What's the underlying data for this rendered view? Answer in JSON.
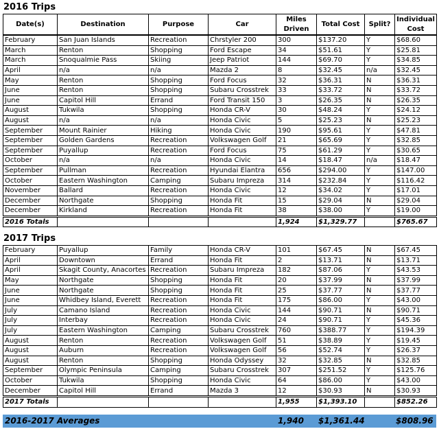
{
  "headers": [
    "Date(s)",
    "Destination",
    "Purpose",
    "Car",
    "Miles Driven",
    "Total Cost",
    "Split?",
    "Individual Cost"
  ],
  "trips_2016": {
    "title": "2016 Trips",
    "rows": [
      [
        "February",
        "San Juan Islands",
        "Recreation",
        "Chrstyler 200",
        "300",
        "$137.20",
        "Y",
        "$68.60"
      ],
      [
        "March",
        "Renton",
        "Shopping",
        "Ford Escape",
        "34",
        "$51.61",
        "Y",
        "$25.81"
      ],
      [
        "March",
        "Snoqualmie Pass",
        "Skiing",
        "Jeep Patriot",
        "144",
        "$69.70",
        "Y",
        "$34.85"
      ],
      [
        "April",
        "n/a",
        "n/a",
        "Mazda 2",
        "8",
        "$32.45",
        "n/a",
        "$32.45"
      ],
      [
        "May",
        "Renton",
        "Shopping",
        "Ford Focus",
        "32",
        "$36.31",
        "N",
        "$36.31"
      ],
      [
        "June",
        "Renton",
        "Shopping",
        "Subaru Crosstrek",
        "33",
        "$33.72",
        "N",
        "$33.72"
      ],
      [
        "June",
        "Capitol Hill",
        "Errand",
        "Ford Transit 150",
        "3",
        "$26.35",
        "N",
        "$26.35"
      ],
      [
        "August",
        "Tukwila",
        "Shopping",
        "Honda CR-V",
        "30",
        "$48.24",
        "Y",
        "$24.12"
      ],
      [
        "August",
        "n/a",
        "n/a",
        "Honda Civic",
        "5",
        "$25.23",
        "N",
        "$25.23"
      ],
      [
        "September",
        "Mount Rainier",
        "Hiking",
        "Honda Civic",
        "190",
        "$95.61",
        "Y",
        "$47.81"
      ],
      [
        "September",
        "Golden Gardens",
        "Recreation",
        "Volkswagen Golf",
        "21",
        "$65.69",
        "Y",
        "$32.85"
      ],
      [
        "September",
        "Puyallup",
        "Recreation",
        "Ford Focus",
        "75",
        "$61.29",
        "Y",
        "$30.65"
      ],
      [
        "October",
        "n/a",
        "n/a",
        "Honda Civic",
        "14",
        "$18.47",
        "n/a",
        "$18.47"
      ],
      [
        "September",
        "Pullman",
        "Recreation",
        "Hyundai Elantra",
        "656",
        "$294.00",
        "Y",
        "$147.00"
      ],
      [
        "October",
        "Eastern Washington",
        "Camping",
        "Subaru Impreza",
        "314",
        "$232.84",
        "Y",
        "$116.42"
      ],
      [
        "November",
        "Ballard",
        "Recreation",
        "Honda Civic",
        "12",
        "$34.02",
        "Y",
        "$17.01"
      ],
      [
        "December",
        "Northgate",
        "Shopping",
        "Honda Fit",
        "15",
        "$29.04",
        "N",
        "$29.04"
      ],
      [
        "December",
        "Kirkland",
        "Recreation",
        "Honda Fit",
        "38",
        "$38.00",
        "Y",
        "$19.00"
      ]
    ],
    "totals": [
      "2016 Totals",
      "",
      "",
      "",
      "1,924",
      "$1,329.77",
      "",
      "$765.67"
    ]
  },
  "trips_2017": {
    "title": "2017 Trips",
    "rows": [
      [
        "February",
        "Puyallup",
        "Family",
        "Honda CR-V",
        "101",
        "$67.45",
        "N",
        "$67.45"
      ],
      [
        "April",
        "Downtown",
        "Errand",
        "Honda Fit",
        "2",
        "$13.71",
        "N",
        "$13.71"
      ],
      [
        "April",
        "Skagit County, Anacortes",
        "Recreation",
        "Subaru Impreza",
        "182",
        "$87.06",
        "Y",
        "$43.53"
      ],
      [
        "May",
        "Northgate",
        "Shopping",
        "Honda Fit",
        "20",
        "$37.99",
        "N",
        "$37.99"
      ],
      [
        "June",
        "Northgate",
        "Shopping",
        "Honda Fit",
        "25",
        "$37.77",
        "N",
        "$37.77"
      ],
      [
        "June",
        "Whidbey Island, Everett",
        "Recreation",
        "Honda Fit",
        "175",
        "$86.00",
        "Y",
        "$43.00"
      ],
      [
        "July",
        "Camano Island",
        "Recreation",
        "Honda Civic",
        "144",
        "$90.71",
        "N",
        "$90.71"
      ],
      [
        "July",
        "Interbay",
        "Recreation",
        "Honda Civic",
        "24",
        "$90.71",
        "Y",
        "$45.36"
      ],
      [
        "July",
        "Eastern Washington",
        "Camping",
        "Subaru Crosstrek",
        "760",
        "$388.77",
        "Y",
        "$194.39"
      ],
      [
        "August",
        "Renton",
        "Recreation",
        "Volkswagen Golf",
        "51",
        "$38.89",
        "Y",
        "$19.45"
      ],
      [
        "August",
        "Auburn",
        "Recreation",
        "Volkswagen Golf",
        "56",
        "$52.74",
        "Y",
        "$26.37"
      ],
      [
        "August",
        "Renton",
        "Shopping",
        "Honda Odyssey",
        "32",
        "$32.85",
        "N",
        "$32.85"
      ],
      [
        "September",
        "Olympic Peninsula",
        "Camping",
        "Subaru Crosstrek",
        "307",
        "$251.52",
        "Y",
        "$125.76"
      ],
      [
        "October",
        "Tukwila",
        "Shopping",
        "Honda Civic",
        "64",
        "$86.00",
        "Y",
        "$43.00"
      ],
      [
        "December",
        "Capitol Hill",
        "Errand",
        "Mazda 3",
        "12",
        "$30.93",
        "N",
        "$30.93"
      ]
    ],
    "totals": [
      "2017 Totals",
      "",
      "",
      "",
      "1,955",
      "$1,393.10",
      "",
      "$852.26"
    ]
  },
  "averages": {
    "label": "2016-2017 Averages",
    "miles": "1,940",
    "total_cost": "$1,361.44",
    "individual_cost": "$808.96",
    "color": "#5b9bd5"
  }
}
